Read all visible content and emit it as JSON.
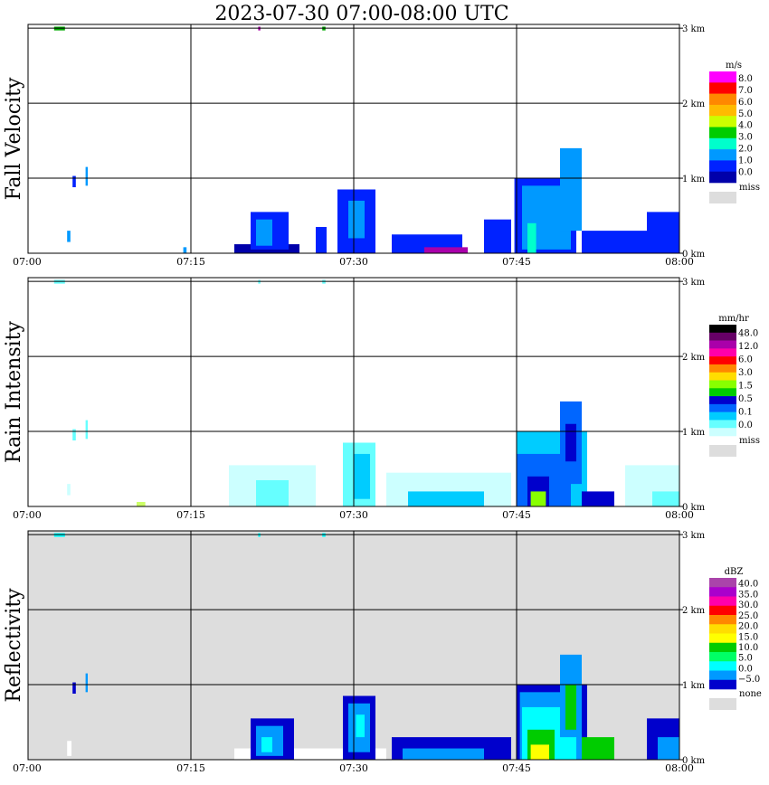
{
  "chart_data": {
    "type": "heatmap",
    "title": "2023-07-30   07:00-08:00 UTC",
    "x_ticks": [
      "07:00",
      "07:15",
      "07:30",
      "07:45",
      "08:00"
    ],
    "y_ticks": [
      "0 km",
      "1 km",
      "2 km",
      "3 km"
    ],
    "ylim_km": [
      0,
      3.0
    ],
    "panels": [
      {
        "name": "Fall Velocity",
        "unit": "m/s",
        "background": "#ffffff",
        "legend": {
          "colors": [
            "#ff00ff",
            "#ff0000",
            "#ff8800",
            "#ffbb00",
            "#ccff00",
            "#00cc00",
            "#00ffcc",
            "#0099ff",
            "#0022ff",
            "#0000aa"
          ],
          "labels": [
            "8.0",
            "7.0",
            "6.0",
            "5.0",
            "4.0",
            "3.0",
            "2.0",
            "1.0",
            "0.0"
          ],
          "miss_label": "miss"
        },
        "echoes": [
          {
            "t0": 2.4,
            "t1": 3.4,
            "h0": 2.97,
            "h1": 3.02,
            "c": "#00aa00"
          },
          {
            "t0": 21.2,
            "t1": 21.4,
            "h0": 2.97,
            "h1": 3.02,
            "c": "#aa00aa"
          },
          {
            "t0": 27.1,
            "t1": 27.4,
            "h0": 2.97,
            "h1": 3.02,
            "c": "#00aa00"
          },
          {
            "t0": 4.1,
            "t1": 4.4,
            "h0": 0.88,
            "h1": 1.03,
            "c": "#0022ff"
          },
          {
            "t0": 5.3,
            "t1": 5.5,
            "h0": 0.9,
            "h1": 1.15,
            "c": "#0099ff"
          },
          {
            "t0": 3.6,
            "t1": 3.9,
            "h0": 0.15,
            "h1": 0.3,
            "c": "#0099ff"
          },
          {
            "t0": 14.3,
            "t1": 14.6,
            "h0": 0.0,
            "h1": 0.08,
            "c": "#0099ff"
          },
          {
            "t0": 19.0,
            "t1": 25.0,
            "h0": 0.0,
            "h1": 0.12,
            "c": "#0000aa"
          },
          {
            "t0": 20.5,
            "t1": 24.0,
            "h0": 0.05,
            "h1": 0.55,
            "c": "#0022ff"
          },
          {
            "t0": 21.0,
            "t1": 22.5,
            "h0": 0.1,
            "h1": 0.45,
            "c": "#0099ff"
          },
          {
            "t0": 26.5,
            "t1": 27.5,
            "h0": 0.0,
            "h1": 0.35,
            "c": "#0022ff"
          },
          {
            "t0": 28.5,
            "t1": 32.0,
            "h0": 0.0,
            "h1": 0.85,
            "c": "#0022ff"
          },
          {
            "t0": 29.5,
            "t1": 31.0,
            "h0": 0.2,
            "h1": 0.7,
            "c": "#0099ff"
          },
          {
            "t0": 33.5,
            "t1": 40.0,
            "h0": 0.0,
            "h1": 0.25,
            "c": "#0022ff"
          },
          {
            "t0": 36.5,
            "t1": 40.5,
            "h0": 0.0,
            "h1": 0.08,
            "c": "#aa00aa"
          },
          {
            "t0": 42.0,
            "t1": 44.5,
            "h0": 0.0,
            "h1": 0.45,
            "c": "#0022ff"
          },
          {
            "t0": 44.8,
            "t1": 50.5,
            "h0": 0.0,
            "h1": 1.0,
            "c": "#0022ff"
          },
          {
            "t0": 45.5,
            "t1": 50.0,
            "h0": 0.05,
            "h1": 0.9,
            "c": "#0099ff"
          },
          {
            "t0": 46.0,
            "t1": 46.8,
            "h0": 0.0,
            "h1": 0.4,
            "c": "#00ffcc"
          },
          {
            "t0": 49.0,
            "t1": 51.0,
            "h0": 0.3,
            "h1": 1.4,
            "c": "#0099ff"
          },
          {
            "t0": 51.0,
            "t1": 57.0,
            "h0": 0.0,
            "h1": 0.3,
            "c": "#0022ff"
          },
          {
            "t0": 57.0,
            "t1": 60.0,
            "h0": 0.0,
            "h1": 0.55,
            "c": "#0022ff"
          }
        ]
      },
      {
        "name": "Rain Intensity",
        "unit": "mm/hr",
        "background": "#ffffff",
        "legend": {
          "colors": [
            "#000000",
            "#660066",
            "#aa00aa",
            "#ff00aa",
            "#ff0000",
            "#ff8800",
            "#ffdd00",
            "#88ff00",
            "#00cc00",
            "#0000cc",
            "#0066ff",
            "#00ccff",
            "#66ffff",
            "#ccffff"
          ],
          "labels": [
            "48.0",
            "12.0",
            "6.0",
            "3.0",
            "1.5",
            "0.5",
            "0.1",
            "0.0"
          ],
          "miss_label": "miss"
        },
        "echoes": [
          {
            "t0": 2.4,
            "t1": 3.4,
            "h0": 2.97,
            "h1": 3.02,
            "c": "#66ffff"
          },
          {
            "t0": 21.2,
            "t1": 21.4,
            "h0": 2.97,
            "h1": 3.02,
            "c": "#66ffff"
          },
          {
            "t0": 27.1,
            "t1": 27.4,
            "h0": 2.97,
            "h1": 3.02,
            "c": "#66ffff"
          },
          {
            "t0": 4.1,
            "t1": 4.4,
            "h0": 0.88,
            "h1": 1.03,
            "c": "#66ffff"
          },
          {
            "t0": 5.3,
            "t1": 5.5,
            "h0": 0.9,
            "h1": 1.15,
            "c": "#66ffff"
          },
          {
            "t0": 3.6,
            "t1": 3.9,
            "h0": 0.15,
            "h1": 0.3,
            "c": "#ccffff"
          },
          {
            "t0": 10.0,
            "t1": 10.8,
            "h0": 0.0,
            "h1": 0.06,
            "c": "#ccff66"
          },
          {
            "t0": 18.5,
            "t1": 26.5,
            "h0": 0.0,
            "h1": 0.55,
            "c": "#ccffff"
          },
          {
            "t0": 21.0,
            "t1": 24.0,
            "h0": 0.0,
            "h1": 0.35,
            "c": "#66ffff"
          },
          {
            "t0": 29.0,
            "t1": 32.0,
            "h0": 0.0,
            "h1": 0.85,
            "c": "#66ffff"
          },
          {
            "t0": 30.0,
            "t1": 31.5,
            "h0": 0.1,
            "h1": 0.7,
            "c": "#00ccff"
          },
          {
            "t0": 33.0,
            "t1": 44.5,
            "h0": 0.0,
            "h1": 0.45,
            "c": "#ccffff"
          },
          {
            "t0": 35.0,
            "t1": 42.0,
            "h0": 0.0,
            "h1": 0.2,
            "c": "#00ccff"
          },
          {
            "t0": 45.0,
            "t1": 51.5,
            "h0": 0.0,
            "h1": 1.0,
            "c": "#00ccff"
          },
          {
            "t0": 45.0,
            "t1": 50.0,
            "h0": 0.0,
            "h1": 0.7,
            "c": "#0066ff"
          },
          {
            "t0": 46.0,
            "t1": 48.0,
            "h0": 0.0,
            "h1": 0.4,
            "c": "#0000cc"
          },
          {
            "t0": 46.3,
            "t1": 47.7,
            "h0": 0.0,
            "h1": 0.2,
            "c": "#88ff00"
          },
          {
            "t0": 49.0,
            "t1": 51.0,
            "h0": 0.3,
            "h1": 1.4,
            "c": "#0066ff"
          },
          {
            "t0": 49.5,
            "t1": 50.5,
            "h0": 0.6,
            "h1": 1.1,
            "c": "#0000cc"
          },
          {
            "t0": 51.0,
            "t1": 54.0,
            "h0": 0.0,
            "h1": 0.2,
            "c": "#0000cc"
          },
          {
            "t0": 55.0,
            "t1": 60.0,
            "h0": 0.0,
            "h1": 0.55,
            "c": "#ccffff"
          },
          {
            "t0": 57.5,
            "t1": 60.0,
            "h0": 0.0,
            "h1": 0.2,
            "c": "#66ffff"
          }
        ]
      },
      {
        "name": "Reflectivity",
        "unit": "dBZ",
        "background": "#dddddd",
        "legend": {
          "colors": [
            "#aa44aa",
            "#aa00cc",
            "#ff00aa",
            "#ff0000",
            "#ff8800",
            "#ffdd00",
            "#ffff00",
            "#00cc00",
            "#00ff66",
            "#00ffff",
            "#0099ff",
            "#0000cc"
          ],
          "labels": [
            "40.0",
            "35.0",
            "30.0",
            "25.0",
            "20.0",
            "15.0",
            "10.0",
            "5.0",
            "0.0",
            "−5.0"
          ],
          "miss_label": "none"
        },
        "echoes": [
          {
            "t0": 2.4,
            "t1": 3.4,
            "h0": 2.97,
            "h1": 3.02,
            "c": "#00ffff"
          },
          {
            "t0": 21.2,
            "t1": 21.4,
            "h0": 2.97,
            "h1": 3.02,
            "c": "#00ffff"
          },
          {
            "t0": 27.1,
            "t1": 27.4,
            "h0": 2.97,
            "h1": 3.02,
            "c": "#00ffff"
          },
          {
            "t0": 4.1,
            "t1": 4.4,
            "h0": 0.88,
            "h1": 1.03,
            "c": "#0000cc"
          },
          {
            "t0": 5.3,
            "t1": 5.5,
            "h0": 0.9,
            "h1": 1.15,
            "c": "#0099ff"
          },
          {
            "t0": 3.6,
            "t1": 4.0,
            "h0": 0.05,
            "h1": 0.25,
            "c": "#ffffff"
          },
          {
            "t0": 19.0,
            "t1": 33.0,
            "h0": 0.0,
            "h1": 0.15,
            "c": "#ffffff"
          },
          {
            "t0": 20.5,
            "t1": 24.5,
            "h0": 0.0,
            "h1": 0.55,
            "c": "#0000cc"
          },
          {
            "t0": 21.0,
            "t1": 23.5,
            "h0": 0.05,
            "h1": 0.45,
            "c": "#0099ff"
          },
          {
            "t0": 21.5,
            "t1": 22.5,
            "h0": 0.1,
            "h1": 0.3,
            "c": "#00ffff"
          },
          {
            "t0": 29.0,
            "t1": 32.0,
            "h0": 0.0,
            "h1": 0.85,
            "c": "#0000cc"
          },
          {
            "t0": 29.5,
            "t1": 31.5,
            "h0": 0.1,
            "h1": 0.75,
            "c": "#0099ff"
          },
          {
            "t0": 30.2,
            "t1": 31.0,
            "h0": 0.3,
            "h1": 0.6,
            "c": "#00ffff"
          },
          {
            "t0": 33.5,
            "t1": 44.5,
            "h0": 0.0,
            "h1": 0.3,
            "c": "#0000cc"
          },
          {
            "t0": 34.5,
            "t1": 42.0,
            "h0": 0.0,
            "h1": 0.15,
            "c": "#0099ff"
          },
          {
            "t0": 45.0,
            "t1": 51.5,
            "h0": 0.0,
            "h1": 1.0,
            "c": "#0000cc"
          },
          {
            "t0": 45.3,
            "t1": 51.0,
            "h0": 0.0,
            "h1": 0.9,
            "c": "#0099ff"
          },
          {
            "t0": 45.5,
            "t1": 50.5,
            "h0": 0.0,
            "h1": 0.7,
            "c": "#00ffff"
          },
          {
            "t0": 46.0,
            "t1": 48.5,
            "h0": 0.0,
            "h1": 0.4,
            "c": "#00cc00"
          },
          {
            "t0": 46.3,
            "t1": 48.0,
            "h0": 0.0,
            "h1": 0.2,
            "c": "#ffff00"
          },
          {
            "t0": 49.0,
            "t1": 51.0,
            "h0": 0.3,
            "h1": 1.4,
            "c": "#0099ff"
          },
          {
            "t0": 49.5,
            "t1": 50.5,
            "h0": 0.4,
            "h1": 1.0,
            "c": "#00cc00"
          },
          {
            "t0": 51.0,
            "t1": 54.0,
            "h0": 0.0,
            "h1": 0.3,
            "c": "#00cc00"
          },
          {
            "t0": 57.0,
            "t1": 60.0,
            "h0": 0.0,
            "h1": 0.55,
            "c": "#0000cc"
          },
          {
            "t0": 58.0,
            "t1": 60.0,
            "h0": 0.0,
            "h1": 0.3,
            "c": "#0099ff"
          }
        ]
      }
    ]
  }
}
